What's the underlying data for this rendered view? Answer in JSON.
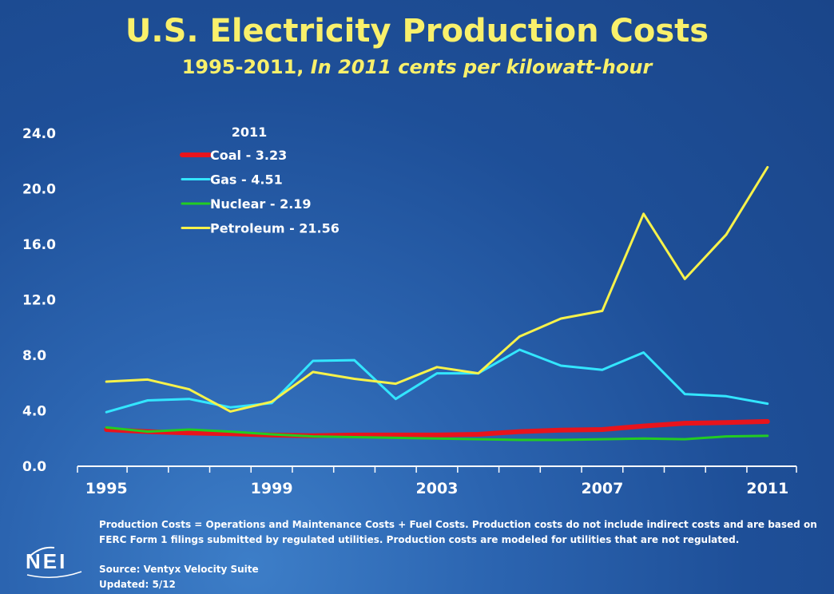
{
  "header": {
    "title": "U.S. Electricity Production Costs",
    "subtitle_years": "1995-2011, ",
    "subtitle_units": "In 2011 cents per kilowatt-hour"
  },
  "chart_data": {
    "type": "line",
    "title": "U.S. Electricity Production Costs",
    "subtitle": "1995-2011, In 2011 cents per kilowatt-hour",
    "xlabel": "",
    "ylabel": "",
    "ylim": [
      0,
      24
    ],
    "yticks": [
      0,
      4,
      8,
      12,
      16,
      20,
      24
    ],
    "ytick_labels": [
      "0.0",
      "4.0",
      "8.0",
      "12.0",
      "16.0",
      "20.0",
      "24.0"
    ],
    "x": [
      1995,
      1996,
      1997,
      1998,
      1999,
      2000,
      2001,
      2002,
      2003,
      2004,
      2005,
      2006,
      2007,
      2008,
      2009,
      2010,
      2011
    ],
    "xtick_labels": [
      "1995",
      "1999",
      "2003",
      "2007",
      "2011"
    ],
    "legend_title": "2011",
    "legend_position": "top-left",
    "series": [
      {
        "name": "Coal",
        "label": "Coal - 3.23",
        "color": "#e8141c",
        "width": 6,
        "values": [
          2.65,
          2.5,
          2.4,
          2.35,
          2.25,
          2.2,
          2.25,
          2.25,
          2.25,
          2.3,
          2.5,
          2.6,
          2.65,
          2.9,
          3.1,
          3.15,
          3.23
        ]
      },
      {
        "name": "Gas",
        "label": "Gas - 4.51",
        "color": "#33e6ff",
        "width": 3,
        "values": [
          3.9,
          4.75,
          4.85,
          4.25,
          4.55,
          7.6,
          7.65,
          4.85,
          6.7,
          6.7,
          8.4,
          7.25,
          6.95,
          8.2,
          5.2,
          5.05,
          4.51
        ]
      },
      {
        "name": "Nuclear",
        "label": "Nuclear - 2.19",
        "color": "#22cc22",
        "width": 3,
        "values": [
          2.8,
          2.5,
          2.65,
          2.5,
          2.3,
          2.15,
          2.1,
          2.05,
          2.0,
          1.95,
          1.9,
          1.9,
          1.95,
          2.0,
          1.95,
          2.15,
          2.19
        ]
      },
      {
        "name": "Petroleum",
        "label": "Petroleum - 21.56",
        "color": "#f7f24a",
        "width": 3,
        "values": [
          6.1,
          6.25,
          5.55,
          3.95,
          4.65,
          6.8,
          6.3,
          5.95,
          7.15,
          6.7,
          9.35,
          10.65,
          11.2,
          18.2,
          13.5,
          16.7,
          21.56
        ]
      }
    ]
  },
  "footer": {
    "definition": "Production Costs = Operations and Maintenance Costs + Fuel Costs. Production costs do not include indirect costs and are based on FERC Form 1 filings submitted by regulated utilities. Production costs are modeled for utilities that are not regulated.",
    "source": "Source: Ventyx Velocity Suite",
    "updated": "Updated: 5/12",
    "logo_text": "NEI"
  }
}
